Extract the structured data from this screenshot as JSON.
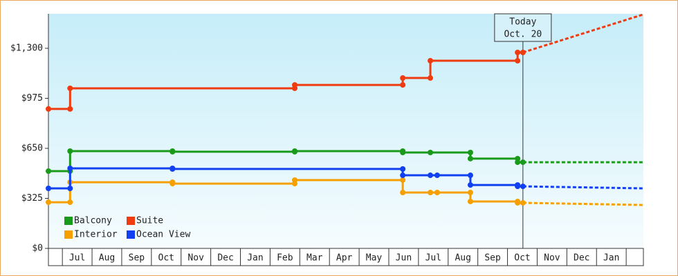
{
  "chart_data": {
    "type": "line",
    "categories": [
      null,
      "Jul",
      "Aug",
      "Sep",
      "Oct",
      "Nov",
      "Dec",
      "Jan",
      "Feb",
      "Mar",
      "Apr",
      "May",
      "Jun",
      "Jul",
      "Aug",
      "Sep",
      "Oct",
      "Nov",
      "Dec",
      "Jan",
      null
    ],
    "xlim": [
      0.53,
      20.58
    ],
    "ylim": [
      0,
      1524
    ],
    "yticks": [
      {
        "value": 0,
        "label": "$0"
      },
      {
        "value": 325,
        "label": "$325"
      },
      {
        "value": 650,
        "label": "$650"
      },
      {
        "value": 975,
        "label": "$975"
      },
      {
        "value": 1300,
        "label": "$1,300"
      }
    ],
    "today": {
      "label": "Today",
      "date": "Oct. 20",
      "x": 16.52
    },
    "legend": "lower-left",
    "series": [
      {
        "name": "Balcony",
        "color": "#1a9a1a",
        "x": [
          0.53,
          1.26,
          1.26,
          4.71,
          4.71,
          8.83,
          8.83,
          12.47,
          12.47,
          13.4,
          14.75,
          14.75,
          16.34,
          16.34,
          16.52
        ],
        "values": [
          502,
          502,
          632,
          632,
          628,
          628,
          632,
          632,
          623,
          623,
          623,
          583,
          583,
          560,
          560
        ],
        "forecast": {
          "x": [
            16.52,
            20.58
          ],
          "values": [
            560,
            560
          ]
        }
      },
      {
        "name": "Suite",
        "color": "#f03a10",
        "x": [
          0.53,
          1.26,
          1.26,
          8.83,
          8.83,
          12.47,
          12.47,
          13.4,
          13.4,
          16.34,
          16.34,
          16.52
        ],
        "values": [
          906,
          906,
          1040,
          1040,
          1062,
          1062,
          1107,
          1107,
          1219,
          1219,
          1273,
          1273
        ],
        "forecast": {
          "x": [
            16.52,
            20.58
          ],
          "values": [
            1273,
            1520
          ]
        }
      },
      {
        "name": "Interior",
        "color": "#f5a000",
        "x": [
          0.53,
          1.26,
          1.26,
          4.71,
          4.71,
          8.83,
          8.83,
          12.47,
          12.47,
          13.4,
          13.63,
          14.75,
          14.75,
          16.34,
          16.34,
          16.52
        ],
        "values": [
          300,
          300,
          430,
          430,
          421,
          421,
          444,
          444,
          363,
          363,
          363,
          363,
          305,
          305,
          296,
          296
        ],
        "forecast": {
          "x": [
            16.52,
            20.58
          ],
          "values": [
            296,
            282
          ]
        }
      },
      {
        "name": "Ocean View",
        "color": "#1040f0",
        "x": [
          0.53,
          1.26,
          1.26,
          4.71,
          4.71,
          12.47,
          12.47,
          13.4,
          13.63,
          14.75,
          14.75,
          16.34,
          16.34,
          16.52
        ],
        "values": [
          390,
          390,
          520,
          520,
          516,
          516,
          475,
          475,
          475,
          475,
          412,
          412,
          403,
          403
        ],
        "forecast": {
          "x": [
            16.52,
            20.58
          ],
          "values": [
            403,
            390
          ]
        }
      }
    ]
  }
}
